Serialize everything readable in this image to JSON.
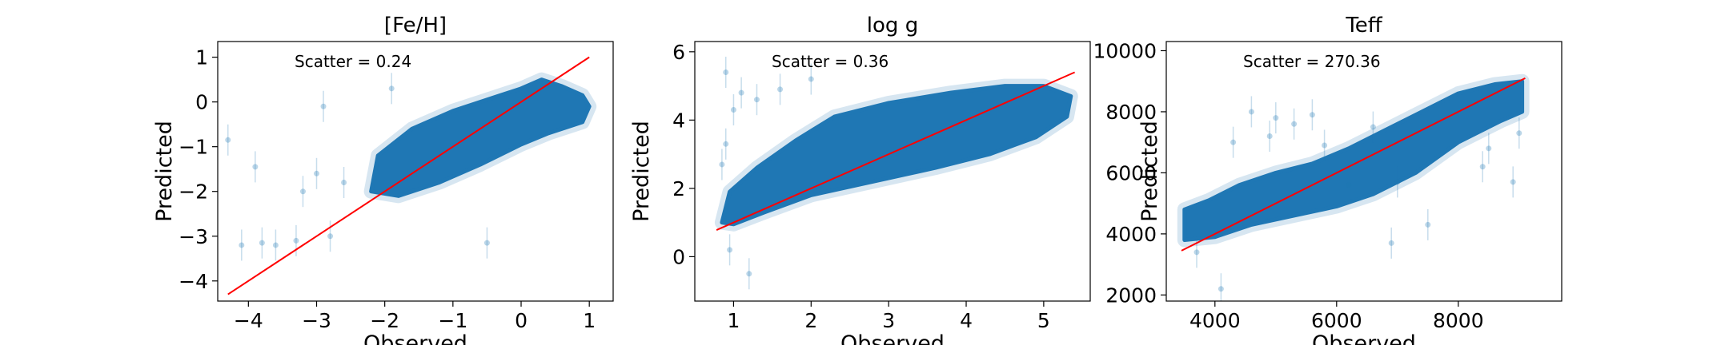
{
  "chart_data": [
    {
      "type": "scatter",
      "title": "[Fe/H]",
      "xlabel": "Observed",
      "ylabel": "Predicted",
      "xlim": [
        -4.45,
        1.35
      ],
      "ylim": [
        -4.45,
        1.35
      ],
      "xticks": [
        -4,
        -3,
        -2,
        -1,
        0,
        1
      ],
      "yticks": [
        -4,
        -3,
        -2,
        -1,
        0,
        1
      ],
      "annotation": "Scatter = 0.24",
      "point_color": "#1f77b4",
      "line_color": "#ff0000",
      "identity_line": [
        [
          -4.3,
          -4.3
        ],
        [
          1.0,
          1.0
        ]
      ],
      "cloud_outline": [
        [
          -2.2,
          -2.0
        ],
        [
          -2.1,
          -1.2
        ],
        [
          -1.6,
          -0.6
        ],
        [
          -1.0,
          -0.2
        ],
        [
          -0.4,
          0.1
        ],
        [
          0.0,
          0.3
        ],
        [
          0.3,
          0.5
        ],
        [
          0.6,
          0.35
        ],
        [
          0.9,
          0.15
        ],
        [
          1.0,
          -0.1
        ],
        [
          0.9,
          -0.45
        ],
        [
          0.4,
          -0.7
        ],
        [
          0.0,
          -0.95
        ],
        [
          -0.6,
          -1.4
        ],
        [
          -1.2,
          -1.8
        ],
        [
          -1.8,
          -2.1
        ]
      ],
      "outliers": [
        [
          -4.3,
          -0.85
        ],
        [
          -4.1,
          -3.2
        ],
        [
          -3.8,
          -3.15
        ],
        [
          -3.6,
          -3.2
        ],
        [
          -3.3,
          -3.1
        ],
        [
          -3.0,
          -1.6
        ],
        [
          -2.8,
          -3.0
        ],
        [
          -3.9,
          -1.45
        ],
        [
          -2.6,
          -1.8
        ],
        [
          -0.5,
          -3.15
        ],
        [
          -2.9,
          -0.1
        ],
        [
          -1.9,
          0.3
        ],
        [
          -3.2,
          -2.0
        ]
      ]
    },
    {
      "type": "scatter",
      "title": "log g",
      "xlabel": "Observed",
      "ylabel": "Predicted",
      "xlim": [
        0.5,
        5.6
      ],
      "ylim": [
        -1.3,
        6.3
      ],
      "xticks": [
        1,
        2,
        3,
        4,
        5
      ],
      "yticks": [
        0,
        2,
        4,
        6
      ],
      "annotation": "Scatter = 0.36",
      "point_color": "#1f77b4",
      "line_color": "#ff0000",
      "identity_line": [
        [
          0.78,
          0.78
        ],
        [
          5.4,
          5.4
        ]
      ],
      "cloud_outline": [
        [
          0.85,
          1.0
        ],
        [
          0.95,
          1.9
        ],
        [
          1.3,
          2.6
        ],
        [
          1.8,
          3.4
        ],
        [
          2.3,
          4.1
        ],
        [
          3.0,
          4.5
        ],
        [
          3.8,
          4.8
        ],
        [
          4.5,
          5.0
        ],
        [
          5.0,
          5.0
        ],
        [
          5.35,
          4.7
        ],
        [
          5.3,
          4.1
        ],
        [
          4.9,
          3.5
        ],
        [
          4.3,
          3.0
        ],
        [
          3.6,
          2.6
        ],
        [
          2.8,
          2.2
        ],
        [
          2.0,
          1.8
        ],
        [
          1.4,
          1.3
        ],
        [
          1.0,
          0.95
        ]
      ],
      "outliers": [
        [
          0.85,
          2.7
        ],
        [
          0.9,
          3.3
        ],
        [
          1.0,
          4.3
        ],
        [
          1.1,
          4.8
        ],
        [
          0.95,
          0.2
        ],
        [
          1.3,
          4.6
        ],
        [
          1.6,
          4.9
        ],
        [
          2.0,
          5.2
        ],
        [
          1.2,
          -0.5
        ],
        [
          0.9,
          5.4
        ]
      ]
    },
    {
      "type": "scatter",
      "title": "Teff",
      "xlabel": "Observed",
      "ylabel": "Predicted",
      "xlim": [
        3200,
        9700
      ],
      "ylim": [
        1800,
        10300
      ],
      "xticks": [
        4000,
        6000,
        8000
      ],
      "yticks": [
        2000,
        4000,
        6000,
        8000,
        10000
      ],
      "annotation": "Scatter = 270.36",
      "point_color": "#1f77b4",
      "line_color": "#ff0000",
      "identity_line": [
        [
          3450,
          3450
        ],
        [
          9100,
          9100
        ]
      ],
      "cloud_outline": [
        [
          3500,
          3800
        ],
        [
          3500,
          4800
        ],
        [
          3900,
          5100
        ],
        [
          4400,
          5600
        ],
        [
          5000,
          6000
        ],
        [
          5600,
          6300
        ],
        [
          6200,
          6800
        ],
        [
          6800,
          7400
        ],
        [
          7400,
          8000
        ],
        [
          8000,
          8600
        ],
        [
          8600,
          8900
        ],
        [
          9050,
          9000
        ],
        [
          9050,
          8000
        ],
        [
          8700,
          7700
        ],
        [
          8000,
          7000
        ],
        [
          7300,
          6000
        ],
        [
          6600,
          5300
        ],
        [
          6000,
          4900
        ],
        [
          5300,
          4600
        ],
        [
          4600,
          4300
        ],
        [
          4000,
          3900
        ]
      ],
      "outliers": [
        [
          4600,
          8000
        ],
        [
          5000,
          7800
        ],
        [
          5300,
          7600
        ],
        [
          5600,
          7900
        ],
        [
          4900,
          7200
        ],
        [
          4300,
          7000
        ],
        [
          6200,
          5600
        ],
        [
          7000,
          5700
        ],
        [
          8400,
          6200
        ],
        [
          8900,
          5700
        ],
        [
          6900,
          3700
        ],
        [
          7500,
          4300
        ],
        [
          4100,
          2200
        ],
        [
          3700,
          3400
        ],
        [
          8500,
          6800
        ],
        [
          9000,
          7300
        ],
        [
          5800,
          6900
        ],
        [
          6600,
          7500
        ]
      ]
    }
  ]
}
